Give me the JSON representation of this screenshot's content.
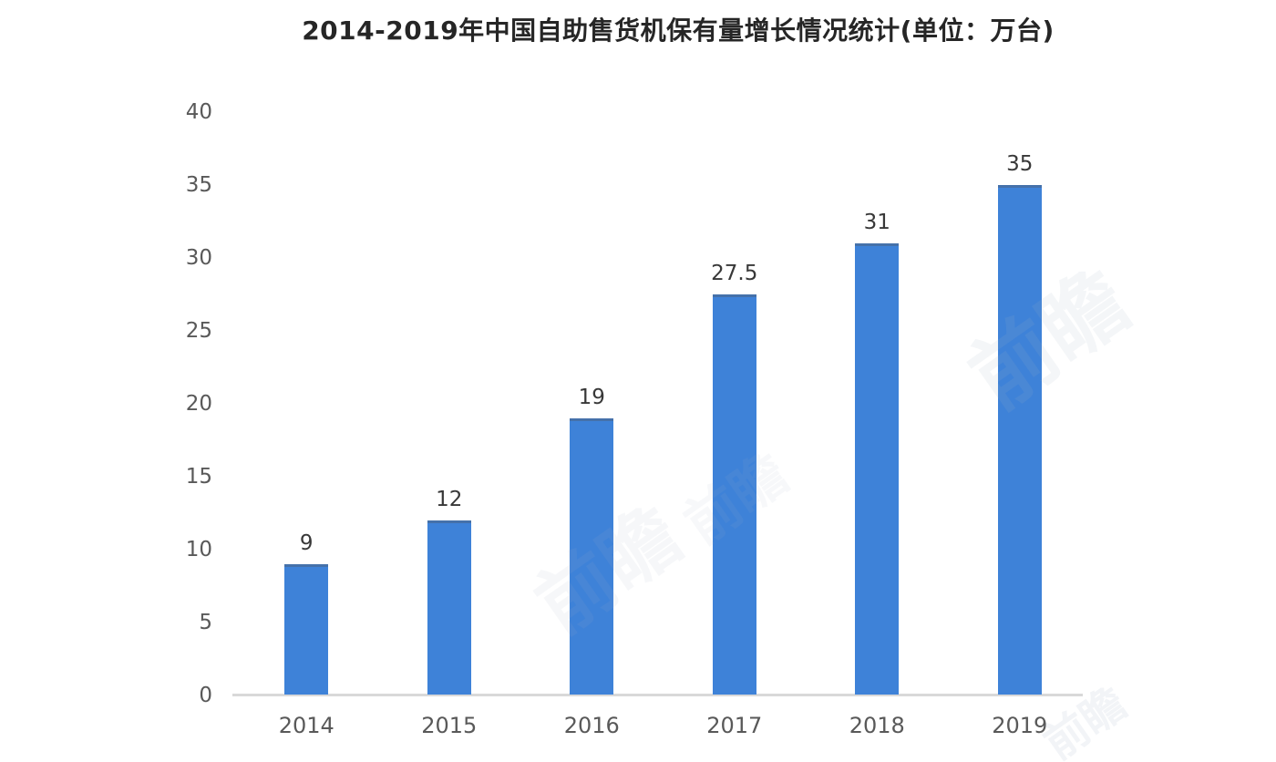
{
  "chart_data": {
    "type": "bar",
    "title": "2014-2019年中国自助售货机保有量增长情况统计(单位：万台)",
    "categories": [
      "2014",
      "2015",
      "2016",
      "2017",
      "2018",
      "2019"
    ],
    "values": [
      9,
      12,
      19,
      27.5,
      31,
      35
    ],
    "value_labels": [
      "9",
      "12",
      "19",
      "27.5",
      "31",
      "35"
    ],
    "unit": "万台",
    "ylim": [
      0,
      40
    ],
    "yticks": [
      0,
      5,
      10,
      15,
      20,
      25,
      30,
      35,
      40
    ],
    "grid": "off",
    "legend_position": "none",
    "bar_color": "#3e82d8",
    "axis_line_color": "#d9d9d9",
    "tick_label_color": "#595959",
    "value_label_color": "#383838",
    "title_color": "#262626"
  },
  "watermark": {
    "text": "前瞻"
  }
}
